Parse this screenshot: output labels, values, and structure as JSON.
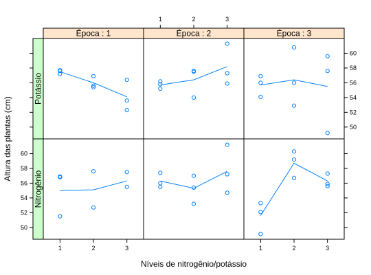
{
  "chart_data": {
    "type": "scatter",
    "xlabel": "Níveis de nitrogênio/potássio",
    "ylabel": "Altura das plantas (cm)",
    "x_ticks": [
      1,
      2,
      3
    ],
    "xlim": [
      0.5,
      3.5
    ],
    "ylim": [
      48.4,
      62.0
    ],
    "y_ticks_top_row": [
      50,
      52,
      54,
      56,
      58,
      60
    ],
    "y_ticks_bottom_row": [
      50,
      52,
      54,
      56,
      58,
      60
    ],
    "column_strips": [
      "Época : 1",
      "Época : 2",
      "Época : 3"
    ],
    "row_strips": [
      "Potássio",
      "Nitrogênio"
    ],
    "point_color": "#0080ff",
    "line_color": "#0080ff",
    "panels": [
      {
        "row": "Potássio",
        "col": "Época : 1",
        "points": [
          [
            1,
            57.7
          ],
          [
            1,
            57.6
          ],
          [
            1,
            57.2
          ],
          [
            2,
            56.9
          ],
          [
            2,
            55.6
          ],
          [
            2,
            55.4
          ],
          [
            3,
            56.4
          ],
          [
            3,
            53.6
          ],
          [
            3,
            52.3
          ]
        ],
        "mean_line": [
          [
            1,
            57.5
          ],
          [
            2,
            56.0
          ],
          [
            3,
            54.1
          ]
        ]
      },
      {
        "row": "Potássio",
        "col": "Época : 2",
        "points": [
          [
            1,
            56.2
          ],
          [
            1,
            55.8
          ],
          [
            1,
            55.2
          ],
          [
            2,
            57.6
          ],
          [
            2,
            57.5
          ],
          [
            2,
            54.0
          ],
          [
            3,
            61.3
          ],
          [
            3,
            57.3
          ],
          [
            3,
            55.9
          ]
        ],
        "mean_line": [
          [
            1,
            55.7
          ],
          [
            2,
            56.4
          ],
          [
            3,
            58.2
          ]
        ]
      },
      {
        "row": "Potássio",
        "col": "Época : 3",
        "points": [
          [
            1,
            56.9
          ],
          [
            1,
            56.0
          ],
          [
            1,
            54.1
          ],
          [
            2,
            60.8
          ],
          [
            2,
            56.0
          ],
          [
            2,
            52.9
          ],
          [
            3,
            59.6
          ],
          [
            3,
            57.6
          ],
          [
            3,
            49.2
          ]
        ],
        "mean_line": [
          [
            1,
            55.7
          ],
          [
            2,
            56.4
          ],
          [
            3,
            55.5
          ]
        ]
      },
      {
        "row": "Nitrogênio",
        "col": "Época : 1",
        "points": [
          [
            1,
            56.9
          ],
          [
            1,
            56.8
          ],
          [
            1,
            51.5
          ],
          [
            2,
            57.6
          ],
          [
            2,
            52.7
          ],
          [
            3,
            57.5
          ],
          [
            3,
            55.5
          ]
        ],
        "mean_line": [
          [
            1,
            55.0
          ],
          [
            2,
            55.1
          ],
          [
            3,
            56.3
          ]
        ]
      },
      {
        "row": "Nitrogênio",
        "col": "Época : 2",
        "points": [
          [
            1,
            57.4
          ],
          [
            1,
            56.0
          ],
          [
            1,
            55.5
          ],
          [
            2,
            57.0
          ],
          [
            2,
            55.4
          ],
          [
            2,
            53.2
          ],
          [
            3,
            61.2
          ],
          [
            3,
            57.2
          ],
          [
            3,
            54.7
          ]
        ],
        "mean_line": [
          [
            1,
            56.3
          ],
          [
            2,
            55.3
          ],
          [
            3,
            57.6
          ]
        ]
      },
      {
        "row": "Nitrogênio",
        "col": "Época : 3",
        "points": [
          [
            1,
            53.3
          ],
          [
            1,
            52.1
          ],
          [
            1,
            49.1
          ],
          [
            2,
            60.3
          ],
          [
            2,
            59.2
          ],
          [
            2,
            56.7
          ],
          [
            3,
            57.3
          ],
          [
            3,
            55.9
          ],
          [
            3,
            55.6
          ]
        ],
        "mean_line": [
          [
            1,
            51.6
          ],
          [
            2,
            58.7
          ],
          [
            3,
            56.3
          ]
        ]
      }
    ]
  }
}
